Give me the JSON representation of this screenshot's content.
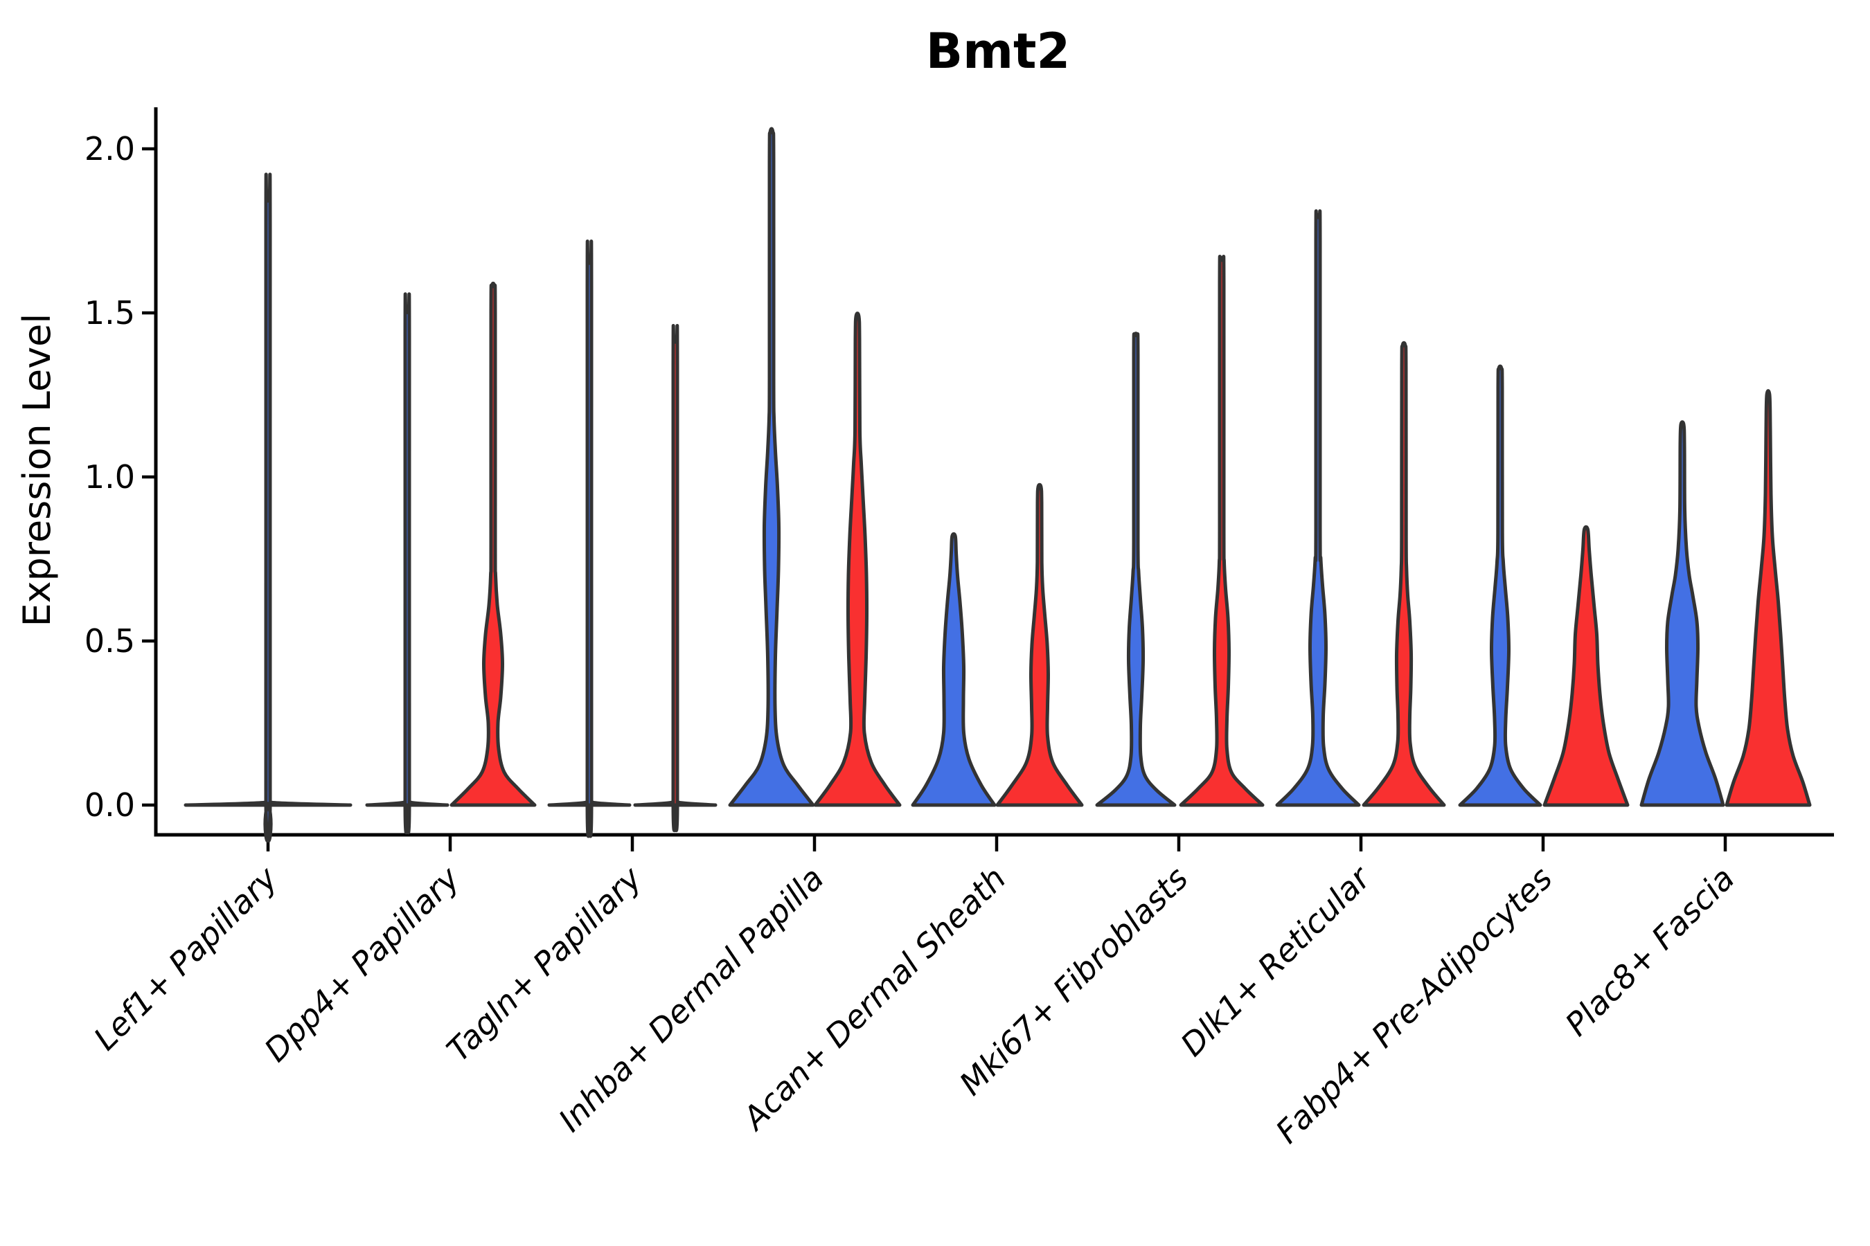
{
  "figure": {
    "title": "Bmt2",
    "ylabel": "Expression Level"
  },
  "chart_data": {
    "type": "violin",
    "title": "Bmt2",
    "xlabel": "",
    "ylabel": "Expression Level",
    "grid": false,
    "legend": null,
    "split_groups_per_category": 2,
    "ylim": [
      -0.08,
      2.13
    ],
    "yticks": [
      {
        "value": 0.0,
        "label": "0.0"
      },
      {
        "value": 0.5,
        "label": "0.5"
      },
      {
        "value": 1.0,
        "label": "1.0"
      },
      {
        "value": 1.5,
        "label": "1.5"
      },
      {
        "value": 2.0,
        "label": "2.0"
      }
    ],
    "colors": {
      "blue": "#4370E4",
      "red": "#F93030",
      "outline": "#333333",
      "axis": "#000000"
    },
    "categories": [
      "Lef1+ Papillary",
      "Dpp4+ Papillary",
      "Tagln+ Papillary",
      "Inhba+ Dermal Papilla",
      "Acan+ Dermal Sheath",
      "Mki67+ Fibroblasts",
      "Dlk1+ Reticular",
      "Fabp4+ Pre-Adipocytes",
      "Plac8+ Fascia"
    ],
    "profile_format": "[expression_value, half_width_px]",
    "groups": [
      {
        "category": "Lef1+ Papillary",
        "violins": [
          {
            "color_key": "blue",
            "position": "center",
            "max_expression": 1.84,
            "density_profile": [
              [
                0,
                119
              ],
              [
                0.008,
                5
              ],
              [
                0.025,
                3
              ],
              [
                1.77,
                3
              ],
              [
                1.84,
                2
              ]
            ]
          }
        ]
      },
      {
        "category": "Dpp4+ Papillary",
        "violins": [
          {
            "color_key": "blue",
            "position": "left",
            "max_expression": 1.5,
            "density_profile": [
              [
                0,
                58
              ],
              [
                0.008,
                5
              ],
              [
                0.025,
                3
              ],
              [
                1.43,
                3
              ],
              [
                1.5,
                2
              ]
            ]
          },
          {
            "color_key": "red",
            "position": "right",
            "max_expression": 1.58,
            "density_profile": [
              [
                0,
                60
              ],
              [
                0.05,
                36
              ],
              [
                0.1,
                16
              ],
              [
                0.17,
                8
              ],
              [
                0.25,
                7
              ],
              [
                0.33,
                11
              ],
              [
                0.43,
                13.5
              ],
              [
                0.52,
                11
              ],
              [
                0.61,
                6
              ],
              [
                0.7,
                3.5
              ],
              [
                0.8,
                3
              ],
              [
                1.5,
                3
              ],
              [
                1.58,
                2
              ]
            ]
          }
        ]
      },
      {
        "category": "Tagln+ Papillary",
        "violins": [
          {
            "color_key": "blue",
            "position": "left",
            "max_expression": 1.65,
            "density_profile": [
              [
                0,
                58
              ],
              [
                0.008,
                5
              ],
              [
                0.025,
                3
              ],
              [
                1.58,
                3
              ],
              [
                1.65,
                2
              ]
            ]
          },
          {
            "color_key": "red",
            "position": "right",
            "max_expression": 1.41,
            "density_profile": [
              [
                0,
                58
              ],
              [
                0.008,
                5
              ],
              [
                0.025,
                3
              ],
              [
                1.34,
                3
              ],
              [
                1.41,
                2
              ]
            ]
          }
        ]
      },
      {
        "category": "Inhba+ Dermal Papilla",
        "violins": [
          {
            "color_key": "blue",
            "position": "left",
            "max_expression": 2.05,
            "density_profile": [
              [
                0,
                60
              ],
              [
                0.06,
                38
              ],
              [
                0.12,
                18
              ],
              [
                0.2,
                8
              ],
              [
                0.3,
                5
              ],
              [
                0.45,
                5.5
              ],
              [
                0.6,
                8
              ],
              [
                0.72,
                10
              ],
              [
                0.85,
                10.5
              ],
              [
                0.97,
                8.5
              ],
              [
                1.08,
                5.5
              ],
              [
                1.18,
                3.5
              ],
              [
                1.3,
                3
              ],
              [
                1.96,
                3
              ],
              [
                2.05,
                2
              ]
            ]
          },
          {
            "color_key": "red",
            "position": "right",
            "max_expression": 1.49,
            "density_profile": [
              [
                0,
                61
              ],
              [
                0.06,
                40
              ],
              [
                0.13,
                20
              ],
              [
                0.22,
                10
              ],
              [
                0.32,
                10.5
              ],
              [
                0.45,
                12.5
              ],
              [
                0.58,
                13.5
              ],
              [
                0.7,
                13
              ],
              [
                0.82,
                11
              ],
              [
                0.94,
                8
              ],
              [
                1.04,
                5.5
              ],
              [
                1.14,
                3.5
              ],
              [
                1.42,
                3
              ],
              [
                1.49,
                2
              ]
            ]
          }
        ]
      },
      {
        "category": "Acan+ Dermal Sheath",
        "violins": [
          {
            "color_key": "blue",
            "position": "left",
            "max_expression": 0.82,
            "density_profile": [
              [
                0,
                59
              ],
              [
                0.06,
                40
              ],
              [
                0.14,
                22
              ],
              [
                0.22,
                14.5
              ],
              [
                0.32,
                14
              ],
              [
                0.42,
                14.5
              ],
              [
                0.52,
                12.5
              ],
              [
                0.62,
                9
              ],
              [
                0.7,
                5.5
              ],
              [
                0.77,
                3.5
              ],
              [
                0.82,
                2.2
              ]
            ]
          },
          {
            "color_key": "red",
            "position": "right",
            "max_expression": 0.97,
            "density_profile": [
              [
                0,
                61
              ],
              [
                0.06,
                40
              ],
              [
                0.13,
                19
              ],
              [
                0.21,
                11.5
              ],
              [
                0.3,
                11.5
              ],
              [
                0.4,
                12.5
              ],
              [
                0.49,
                11
              ],
              [
                0.58,
                7.5
              ],
              [
                0.66,
                4.5
              ],
              [
                0.74,
                3.2
              ],
              [
                0.92,
                3
              ],
              [
                0.97,
                2
              ]
            ]
          }
        ]
      },
      {
        "category": "Mki67+ Fibroblasts",
        "violins": [
          {
            "color_key": "blue",
            "position": "left",
            "max_expression": 1.43,
            "density_profile": [
              [
                0,
                56
              ],
              [
                0.045,
                30
              ],
              [
                0.09,
                13
              ],
              [
                0.15,
                7
              ],
              [
                0.24,
                6.5
              ],
              [
                0.33,
                8.5
              ],
              [
                0.44,
                10.5
              ],
              [
                0.54,
                9.5
              ],
              [
                0.63,
                6.5
              ],
              [
                0.71,
                4
              ],
              [
                0.8,
                3
              ],
              [
                1.37,
                3
              ],
              [
                1.43,
                2
              ]
            ]
          },
          {
            "color_key": "red",
            "position": "right",
            "max_expression": 1.66,
            "density_profile": [
              [
                0,
                59
              ],
              [
                0.05,
                34
              ],
              [
                0.1,
                14
              ],
              [
                0.17,
                7.5
              ],
              [
                0.26,
                7.5
              ],
              [
                0.36,
                9.5
              ],
              [
                0.47,
                10.5
              ],
              [
                0.57,
                9
              ],
              [
                0.66,
                5.5
              ],
              [
                0.74,
                3.5
              ],
              [
                0.84,
                3
              ],
              [
                1.59,
                3
              ],
              [
                1.66,
                2
              ]
            ]
          }
        ]
      },
      {
        "category": "Dlk1+ Reticular",
        "violins": [
          {
            "color_key": "blue",
            "position": "left",
            "max_expression": 1.79,
            "density_profile": [
              [
                0,
                59
              ],
              [
                0.05,
                35
              ],
              [
                0.11,
                15
              ],
              [
                0.18,
                8
              ],
              [
                0.27,
                7.5
              ],
              [
                0.37,
                10
              ],
              [
                0.48,
                11.5
              ],
              [
                0.58,
                10
              ],
              [
                0.67,
                6.5
              ],
              [
                0.75,
                4
              ],
              [
                0.84,
                3
              ],
              [
                1.72,
                3
              ],
              [
                1.79,
                2
              ]
            ]
          },
          {
            "color_key": "red",
            "position": "right",
            "max_expression": 1.4,
            "density_profile": [
              [
                0,
                58
              ],
              [
                0.055,
                36
              ],
              [
                0.12,
                16
              ],
              [
                0.19,
                9
              ],
              [
                0.27,
                8.5
              ],
              [
                0.36,
                10
              ],
              [
                0.46,
                10.5
              ],
              [
                0.56,
                8.5
              ],
              [
                0.64,
                5.5
              ],
              [
                0.72,
                3.8
              ],
              [
                0.82,
                3.2
              ],
              [
                1.33,
                3
              ],
              [
                1.4,
                2
              ]
            ]
          }
        ]
      },
      {
        "category": "Fabp4+ Pre-Adipocytes",
        "violins": [
          {
            "color_key": "blue",
            "position": "left",
            "max_expression": 1.33,
            "density_profile": [
              [
                0,
                58
              ],
              [
                0.05,
                34
              ],
              [
                0.11,
                15
              ],
              [
                0.18,
                8
              ],
              [
                0.26,
                8
              ],
              [
                0.36,
                10.5
              ],
              [
                0.47,
                12.5
              ],
              [
                0.57,
                11
              ],
              [
                0.66,
                7.5
              ],
              [
                0.74,
                4.5
              ],
              [
                0.83,
                3.2
              ],
              [
                1.27,
                3
              ],
              [
                1.33,
                2
              ]
            ]
          },
          {
            "color_key": "red",
            "position": "right",
            "max_expression": 0.84,
            "density_profile": [
              [
                0,
                60
              ],
              [
                0.08,
                46
              ],
              [
                0.16,
                33
              ],
              [
                0.25,
                25
              ],
              [
                0.34,
                20
              ],
              [
                0.43,
                17
              ],
              [
                0.52,
                15.5
              ],
              [
                0.61,
                11.5
              ],
              [
                0.7,
                7.5
              ],
              [
                0.78,
                4.5
              ],
              [
                0.84,
                2.5
              ]
            ]
          }
        ]
      },
      {
        "category": "Plac8+ Fascia",
        "violins": [
          {
            "color_key": "blue",
            "position": "left",
            "max_expression": 1.16,
            "density_profile": [
              [
                0,
                59
              ],
              [
                0.08,
                48
              ],
              [
                0.16,
                34
              ],
              [
                0.24,
                24
              ],
              [
                0.3,
                20
              ],
              [
                0.38,
                21
              ],
              [
                0.48,
                22.5
              ],
              [
                0.56,
                21
              ],
              [
                0.64,
                15
              ],
              [
                0.7,
                10
              ],
              [
                0.78,
                6
              ],
              [
                0.9,
                3.5
              ],
              [
                1.1,
                3
              ],
              [
                1.16,
                2
              ]
            ]
          },
          {
            "color_key": "red",
            "position": "right",
            "max_expression": 1.25,
            "density_profile": [
              [
                0,
                60
              ],
              [
                0.07,
                50
              ],
              [
                0.15,
                36
              ],
              [
                0.23,
                28
              ],
              [
                0.32,
                24
              ],
              [
                0.42,
                21
              ],
              [
                0.52,
                18
              ],
              [
                0.62,
                14.5
              ],
              [
                0.72,
                10
              ],
              [
                0.82,
                6
              ],
              [
                0.95,
                4
              ],
              [
                1.15,
                3
              ],
              [
                1.25,
                2
              ]
            ]
          }
        ]
      }
    ]
  }
}
